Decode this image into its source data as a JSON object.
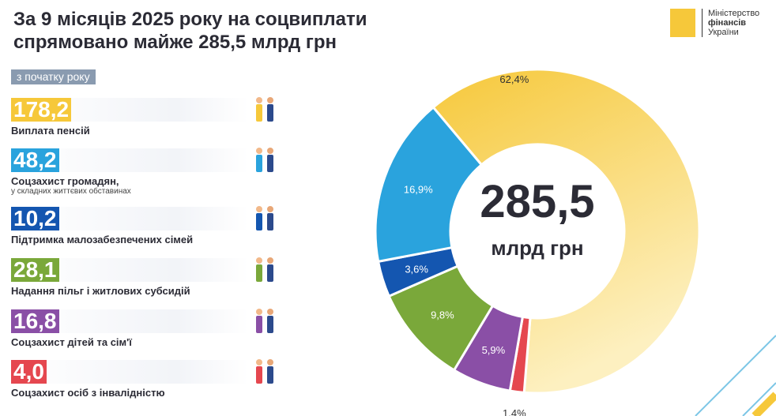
{
  "title_line1": "За 9 місяців 2025 року на соцвиплати",
  "title_line2": "спрямовано майже 285,5 млрд грн",
  "period_tag": "з початку року",
  "logo": {
    "line1": "Міністерство",
    "line2": "фінансів",
    "line3": "України"
  },
  "items": [
    {
      "value": "178,2",
      "label": "Виплата пенсій",
      "sub": "",
      "color": "#f6c83a",
      "icon": "elderly-couple-icon"
    },
    {
      "value": "48,2",
      "label": "Соцзахист громадян,",
      "sub": "у складних життєвих обставинах",
      "color": "#2aa3dd",
      "icon": "people-icon"
    },
    {
      "value": "10,2",
      "label": "Підтримка малозабезпечених сімей",
      "sub": "",
      "color": "#1456b0",
      "icon": "family-icon"
    },
    {
      "value": "28,1",
      "label": "Надання пільг і житлових субсидій",
      "sub": "",
      "color": "#7aa83a",
      "icon": "utilities-icon"
    },
    {
      "value": "16,8",
      "label": "Соцзахист дітей та сім'ї",
      "sub": "",
      "color": "#8a4fa6",
      "icon": "children-icon"
    },
    {
      "value": "4,0",
      "label": "Соцзахист осіб з інвалідністю",
      "sub": "",
      "color": "#e5474f",
      "icon": "wheelchair-icon"
    }
  ],
  "chart_data": {
    "type": "pie",
    "donut": true,
    "center_value": "285,5",
    "center_unit": "млрд грн",
    "slices": [
      {
        "name": "Виплата пенсій",
        "value": 178.2,
        "label": "62,4%",
        "color": "#f6c83a"
      },
      {
        "name": "Соцзахист осіб з інвалідністю",
        "value": 4.0,
        "label": "1,4%",
        "color": "#e5474f"
      },
      {
        "name": "Соцзахист дітей та сім'ї",
        "value": 16.8,
        "label": "5,9%",
        "color": "#8a4fa6"
      },
      {
        "name": "Надання пільг і житлових субсидій",
        "value": 28.1,
        "label": "9,8%",
        "color": "#7aa83a"
      },
      {
        "name": "Підтримка малозабезпечених сімей",
        "value": 10.2,
        "label": "3,6%",
        "color": "#1456b0"
      },
      {
        "name": "Соцзахист громадян у складних життєвих обставинах",
        "value": 48.2,
        "label": "16,9%",
        "color": "#2aa3dd"
      }
    ]
  }
}
